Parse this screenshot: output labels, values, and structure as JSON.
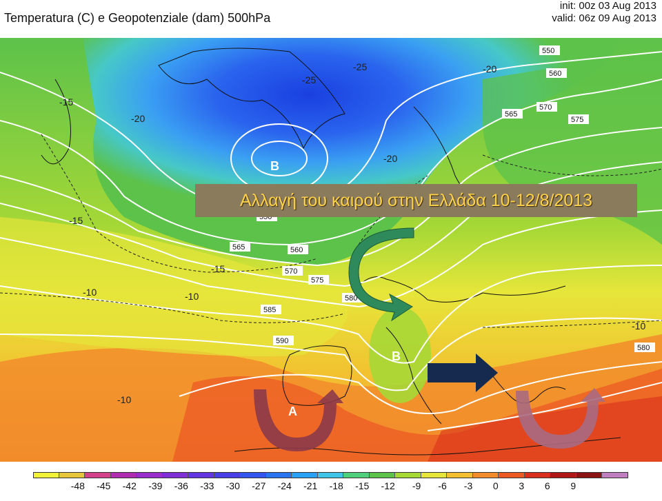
{
  "header": {
    "title": "Temperatura (C) e Geopotenziale (dam) 500hPa",
    "init": "init: 00z 03 Aug 2013",
    "valid": "valid: 06z 09 Aug 2013"
  },
  "banner": {
    "text": "Αλλαγή του καιρού στην Ελλάδα 10-12/8/2013"
  },
  "centers": {
    "low_north": "B",
    "low_italy": "B",
    "high_iberia": "A"
  },
  "geopotential_labels": [
    "550",
    "560",
    "565",
    "570",
    "575",
    "580",
    "585",
    "590",
    "565",
    "560",
    "550",
    "570",
    "575",
    "580"
  ],
  "temperature_labels": [
    "-25",
    "-20",
    "-15",
    "-20",
    "-15",
    "-10",
    "-10",
    "-10",
    "-10",
    "-15",
    "-20",
    "-25"
  ],
  "colorbar": {
    "ticks": [
      "-48",
      "-45",
      "-42",
      "-39",
      "-36",
      "-33",
      "-30",
      "-27",
      "-24",
      "-21",
      "-18",
      "-15",
      "-12",
      "-9",
      "-6",
      "-3",
      "0",
      "3",
      "6",
      "9"
    ],
    "colors": [
      "#f2f23a",
      "#e6c63a",
      "#d4428c",
      "#b02cb0",
      "#9a2ecc",
      "#7e30d6",
      "#6236e0",
      "#4a40e8",
      "#3456ec",
      "#2a74f0",
      "#28a0f4",
      "#40c4e8",
      "#4ed07c",
      "#5cc24a",
      "#a6d836",
      "#e6e63a",
      "#f2c030",
      "#f28c2c",
      "#ec5a24",
      "#d8301c",
      "#b01818",
      "#8a1414",
      "#c080c0"
    ]
  }
}
